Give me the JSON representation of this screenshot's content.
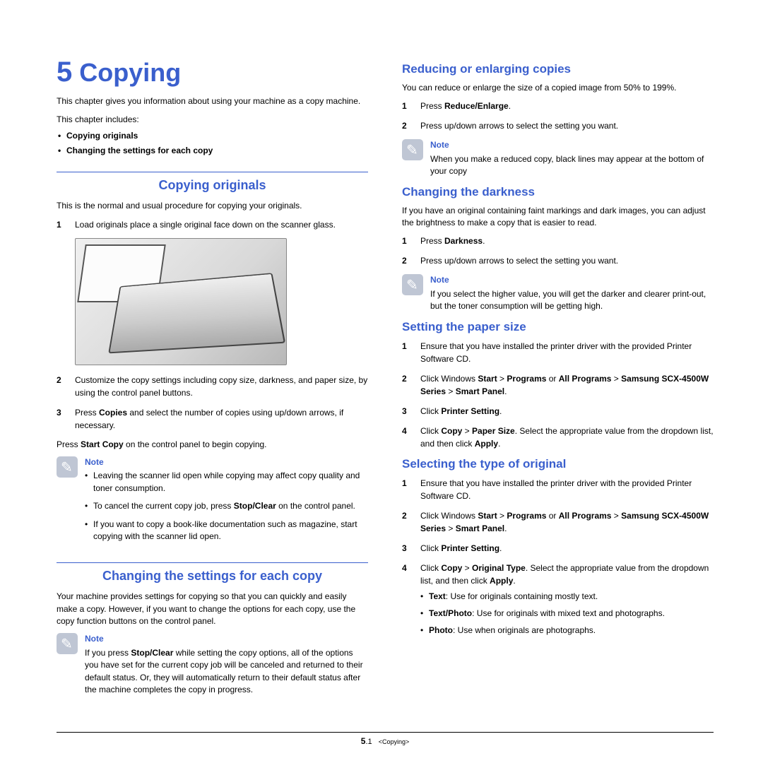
{
  "accent_color": "#3a5fcd",
  "chapter": {
    "number": "5",
    "title": "Copying"
  },
  "intro": "This chapter gives you information about using your machine as a copy machine.",
  "includes_label": "This chapter includes:",
  "includes": [
    "Copying originals",
    "Changing the settings for each copy"
  ],
  "left": {
    "sec1": {
      "title": "Copying originals",
      "intro": "This is the normal and usual procedure for copying your originals.",
      "step1": "Load originals place a single original face down on the scanner glass.",
      "step2_pre": "Customize the copy settings including copy size, darkness, and paper size, by using the control panel buttons.",
      "step3_a": "Press ",
      "step3_b": "Copies",
      "step3_c": " and select the number of copies using up/down arrows, if necessary.",
      "press_a": "Press ",
      "press_b": "Start Copy",
      "press_c": " on the control panel to begin copying.",
      "note_label": "Note",
      "note_items": [
        {
          "plain": "Leaving the scanner lid open while copying may affect copy quality and toner consumption."
        },
        {
          "a": "To cancel the current copy job, press ",
          "b": "Stop/Clear",
          "c": " on the control panel."
        },
        {
          "plain": "If you want to copy a book-like documentation such as magazine, start copying with the scanner lid open."
        }
      ]
    },
    "sec2": {
      "title": "Changing the settings for each copy",
      "intro": "Your machine provides settings for copying so that you can quickly and easily make a copy. However, if you want to change the options for each copy, use the copy function buttons on the control panel.",
      "note_label": "Note",
      "note_a": "If you press ",
      "note_b": "Stop/Clear",
      "note_c": " while setting the copy options, all of the options you have set for the current copy job will be canceled and returned to their default status. Or, they will automatically return to their default status after the machine completes the copy in progress."
    }
  },
  "right": {
    "reduce": {
      "title": "Reducing or enlarging copies",
      "intro": "You can reduce or enlarge the size of a copied image from 50% to 199%.",
      "s1a": "Press ",
      "s1b": "Reduce/Enlarge",
      "s1c": ".",
      "s2": "Press up/down arrows to select the setting you want.",
      "note_label": "Note",
      "note_text": "When you make a reduced copy, black lines may appear at the bottom of your copy"
    },
    "dark": {
      "title": "Changing the darkness",
      "intro": "If you have an original containing faint markings and dark images, you can adjust the brightness to make a copy that is easier to read.",
      "s1a": "Press ",
      "s1b": "Darkness",
      "s1c": ".",
      "s2": "Press up/down arrows to select the setting you want.",
      "note_label": "Note",
      "note_text": "If you select the higher value, you will get the darker and clearer print-out, but the toner consumption will be getting high."
    },
    "paper": {
      "title": "Setting the paper size",
      "s1": "Ensure that you have installed the printer driver with the provided Printer Software CD.",
      "s2a": "Click Windows ",
      "s2b": "Start",
      "s2c": " > ",
      "s2d": "Programs",
      "s2e": " or ",
      "s2f": "All Programs",
      "s2g": " > ",
      "s2h": "Samsung SCX-4500W Series",
      "s2i": " > ",
      "s2j": "Smart Panel",
      "s2k": ".",
      "s3a": "Click ",
      "s3b": "Printer Setting",
      "s3c": ".",
      "s4a": "Click ",
      "s4b": "Copy",
      "s4c": " > ",
      "s4d": "Paper Size",
      "s4e": ". Select the appropriate value from the dropdown list, and then click ",
      "s4f": "Apply",
      "s4g": "."
    },
    "orig": {
      "title": "Selecting the type of original",
      "s1": "Ensure that you have installed the printer driver with the provided Printer Software CD.",
      "s2a": "Click Windows ",
      "s2b": "Start",
      "s2c": " > ",
      "s2d": "Programs",
      "s2e": " or ",
      "s2f": "All Programs",
      "s2g": " > ",
      "s2h": "Samsung SCX-4500W Series",
      "s2i": " > ",
      "s2j": "Smart Panel",
      "s2k": ".",
      "s3a": "Click ",
      "s3b": "Printer Setting",
      "s3c": ".",
      "s4a": "Click ",
      "s4b": "Copy",
      "s4c": " > ",
      "s4d": "Original Type",
      "s4e": ". Select the appropriate value from the dropdown list, and then click ",
      "s4f": "Apply",
      "s4g": ".",
      "b1a": "Text",
      "b1b": ": Use for originals containing mostly text.",
      "b2a": "Text/Photo",
      "b2b": ": Use for originals with mixed text and photographs.",
      "b3a": "Photo",
      "b3b": ": Use when originals are photographs."
    }
  },
  "footer": {
    "chapter": "5",
    "page": ".1",
    "label": "<Copying>"
  }
}
